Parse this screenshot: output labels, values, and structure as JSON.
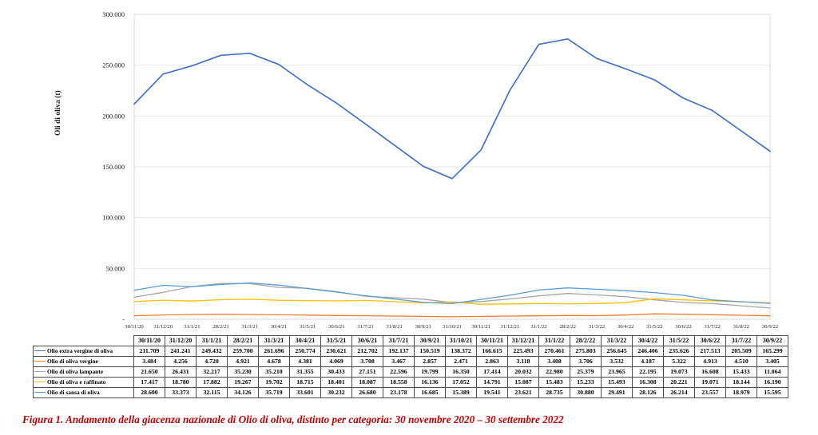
{
  "figure": {
    "caption": "Figura 1. Andamento della giacenza nazionale di Olio di oliva, distinto per categoria: 30 novembre 2020 – 30 settembre 2022",
    "caption_color": "#C00000"
  },
  "chart_data": {
    "type": "line",
    "title": "",
    "xlabel": "",
    "ylabel": "Oli di oliva (t)",
    "ylim": [
      0,
      300000
    ],
    "grid": "horizontal-only",
    "legend_position": "left-column-of-data-table",
    "yticks": [
      {
        "value": 300000,
        "label": "300.000"
      },
      {
        "value": 250000,
        "label": "250.000"
      },
      {
        "value": 200000,
        "label": "200.000"
      },
      {
        "value": 150000,
        "label": "150.000"
      },
      {
        "value": 100000,
        "label": "100.000"
      },
      {
        "value": 50000,
        "label": "50.000"
      },
      {
        "value": 0,
        "label": "-"
      }
    ],
    "x": [
      "30/11/20",
      "31/12/20",
      "31/1/21",
      "28/2/21",
      "31/3/21",
      "30/4/21",
      "31/5/21",
      "30/6/21",
      "31/7/21",
      "31/8/21",
      "30/9/21",
      "31/10/21",
      "30/11/21",
      "31/12/21",
      "31/1/22",
      "28/2/22",
      "31/3/22",
      "30/4/22",
      "31/5/22",
      "30/6/22",
      "31/7/22",
      "31/8/22",
      "30/9/22"
    ],
    "series": [
      {
        "name": "Olio extra vergine di oliva",
        "color": "#4472C4",
        "values": [
          211709,
          241241,
          249432,
          259700,
          261696,
          250774,
          230621,
          212702,
          192137,
          null,
          150519,
          138372,
          166615,
          225493,
          270461,
          275803,
          256645,
          246406,
          235626,
          217513,
          205509,
          null,
          165299
        ]
      },
      {
        "name": "Olio di oliva vergine",
        "color": "#ED7D31",
        "values": [
          3484,
          4256,
          4720,
          4921,
          4678,
          4381,
          4069,
          3708,
          3467,
          null,
          2857,
          2471,
          2863,
          3118,
          3408,
          3706,
          3532,
          4187,
          5322,
          4913,
          4510,
          null,
          3405
        ]
      },
      {
        "name": "Olio di oliva lampante",
        "color": "#A5A5A5",
        "values": [
          21650,
          26431,
          32217,
          35230,
          35210,
          31355,
          30433,
          27151,
          22596,
          null,
          19799,
          16350,
          17414,
          20032,
          22980,
          25379,
          23965,
          22195,
          19073,
          16608,
          15433,
          null,
          11064
        ]
      },
      {
        "name": "Olio di oliva e raffinato",
        "color": "#FFC000",
        "values": [
          17417,
          18780,
          17882,
          19267,
          19702,
          18715,
          18401,
          18087,
          18558,
          null,
          16136,
          17052,
          14791,
          15087,
          15483,
          15233,
          15493,
          16308,
          20221,
          19071,
          18144,
          null,
          16190
        ]
      },
      {
        "name": "Olio di sansa di oliva",
        "color": "#5B9BD5",
        "values": [
          28600,
          33373,
          32115,
          34126,
          35719,
          33601,
          30232,
          26680,
          23178,
          null,
          16685,
          15389,
          19541,
          23621,
          28735,
          30880,
          29491,
          28126,
          26214,
          23557,
          18979,
          null,
          15595
        ]
      }
    ]
  },
  "table": {
    "columns": [
      "30/11/20",
      "31/12/20",
      "31/1/21",
      "28/2/21",
      "31/3/21",
      "30/4/21",
      "31/5/21",
      "30/6/21",
      "31/7/21",
      "30/9/21",
      "31/10/21",
      "30/11/21",
      "31/12/21",
      "31/1/22",
      "28/2/22",
      "31/3/22",
      "30/4/22",
      "31/5/22",
      "30/6/22",
      "31/7/22",
      "30/9/22"
    ]
  }
}
